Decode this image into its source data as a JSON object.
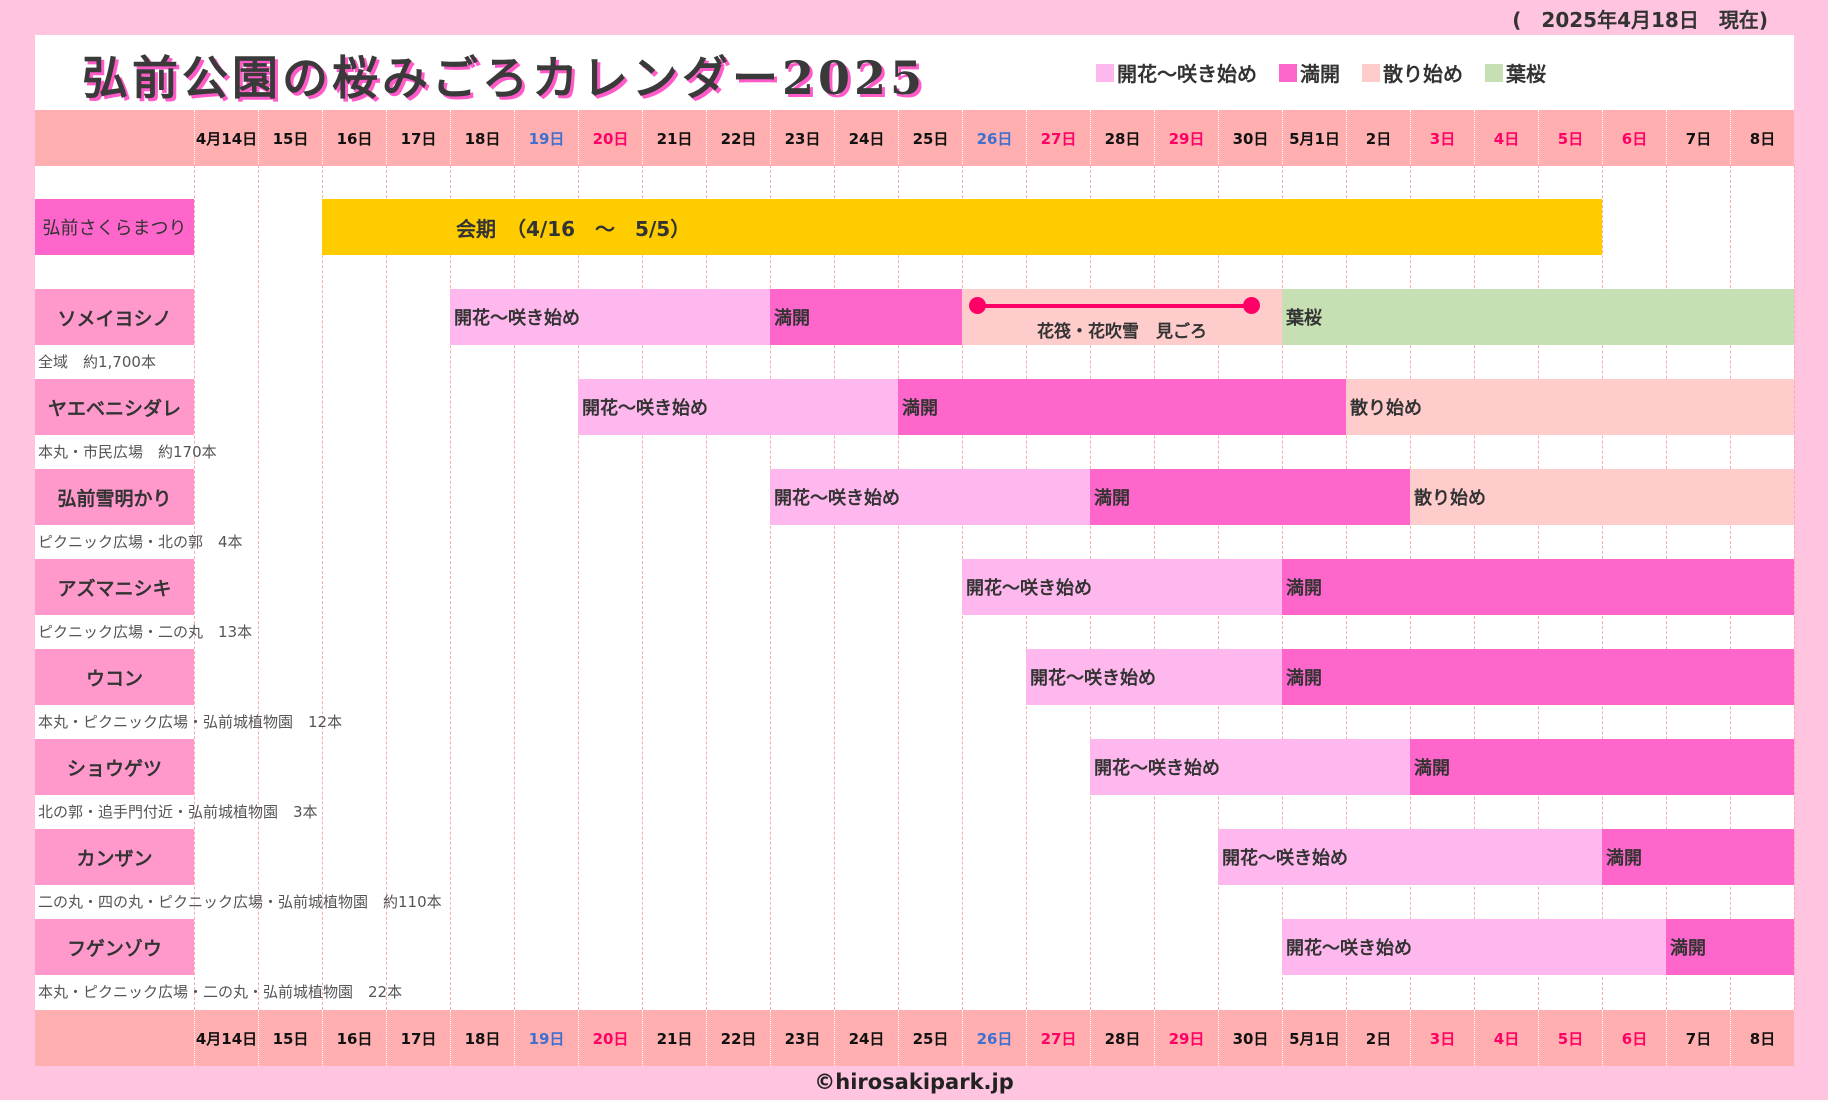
{
  "as_of": "(　2025年4月18日　現在)",
  "title": "弘前公園の桜みごろカレンダー2025",
  "legend": [
    {
      "key": "kaika",
      "label": "開花～咲き始め",
      "color": "#ffb8ee"
    },
    {
      "key": "mankai",
      "label": "満開",
      "color": "#ff66cc"
    },
    {
      "key": "chiri",
      "label": "散り始め",
      "color": "#ffcccc"
    },
    {
      "key": "hazakura",
      "label": "葉桜",
      "color": "#c6e0b4"
    }
  ],
  "stage_labels": {
    "kaika": "開花～咲き始め",
    "mankai": "満開",
    "chiri": "散り始め",
    "hazakura": "葉桜"
  },
  "days": [
    {
      "label": "4月14日",
      "color": "#111"
    },
    {
      "label": "15日",
      "color": "#111"
    },
    {
      "label": "16日",
      "color": "#111"
    },
    {
      "label": "17日",
      "color": "#111"
    },
    {
      "label": "18日",
      "color": "#111"
    },
    {
      "label": "19日",
      "color": "#3f6fcf"
    },
    {
      "label": "20日",
      "color": "#ff0066"
    },
    {
      "label": "21日",
      "color": "#111"
    },
    {
      "label": "22日",
      "color": "#111"
    },
    {
      "label": "23日",
      "color": "#111"
    },
    {
      "label": "24日",
      "color": "#111"
    },
    {
      "label": "25日",
      "color": "#111"
    },
    {
      "label": "26日",
      "color": "#3f6fcf"
    },
    {
      "label": "27日",
      "color": "#ff0066"
    },
    {
      "label": "28日",
      "color": "#111"
    },
    {
      "label": "29日",
      "color": "#ff0066"
    },
    {
      "label": "30日",
      "color": "#111"
    },
    {
      "label": "5月1日",
      "color": "#111"
    },
    {
      "label": "2日",
      "color": "#111"
    },
    {
      "label": "3日",
      "color": "#ff0066"
    },
    {
      "label": "4日",
      "color": "#ff0066"
    },
    {
      "label": "5日",
      "color": "#ff0066"
    },
    {
      "label": "6日",
      "color": "#ff0066"
    },
    {
      "label": "7日",
      "color": "#111"
    },
    {
      "label": "8日",
      "color": "#111"
    }
  ],
  "festival": {
    "name": "弘前さくらまつり",
    "period_text": "会期　（4/16　～　5/5）",
    "start": "16日",
    "end": "5日",
    "color": "#ffcc00",
    "label_color": "#ff66cc"
  },
  "varieties": [
    {
      "name": "ソメイヨシノ",
      "location": "全域　約1,700本",
      "segments": [
        {
          "stage": "kaika",
          "start": "18日",
          "end": "22日"
        },
        {
          "stage": "mankai",
          "start": "23日",
          "end": "25日"
        },
        {
          "stage": "chiri",
          "start": "26日",
          "end": "30日",
          "note": "花筏・花吹雪　見ごろ"
        },
        {
          "stage": "hazakura",
          "start": "5月1日",
          "end": "8日"
        }
      ]
    },
    {
      "name": "ヤエベニシダレ",
      "location": "本丸・市民広場　約170本",
      "segments": [
        {
          "stage": "kaika",
          "start": "20日",
          "end": "24日"
        },
        {
          "stage": "mankai",
          "start": "25日",
          "end": "5月1日"
        },
        {
          "stage": "chiri",
          "start": "2日",
          "end": "8日"
        }
      ]
    },
    {
      "name": "弘前雪明かり",
      "location": "ピクニック広場・北の郭　4本",
      "segments": [
        {
          "stage": "kaika",
          "start": "23日",
          "end": "27日"
        },
        {
          "stage": "mankai",
          "start": "28日",
          "end": "2日"
        },
        {
          "stage": "chiri",
          "start": "3日",
          "end": "8日"
        }
      ]
    },
    {
      "name": "アズマニシキ",
      "location": "ピクニック広場・二の丸　13本",
      "segments": [
        {
          "stage": "kaika",
          "start": "26日",
          "end": "30日"
        },
        {
          "stage": "mankai",
          "start": "5月1日",
          "end": "8日"
        }
      ]
    },
    {
      "name": "ウコン",
      "location": "本丸・ピクニック広場・弘前城植物園　12本",
      "segments": [
        {
          "stage": "kaika",
          "start": "27日",
          "end": "30日"
        },
        {
          "stage": "mankai",
          "start": "5月1日",
          "end": "8日"
        }
      ]
    },
    {
      "name": "ショウゲツ",
      "location": "北の郭・追手門付近・弘前城植物園　3本",
      "segments": [
        {
          "stage": "kaika",
          "start": "28日",
          "end": "2日"
        },
        {
          "stage": "mankai",
          "start": "3日",
          "end": "8日"
        }
      ]
    },
    {
      "name": "カンザン",
      "location": "二の丸・四の丸・ピクニック広場・弘前城植物園　約110本",
      "segments": [
        {
          "stage": "kaika",
          "start": "30日",
          "end": "5日"
        },
        {
          "stage": "mankai",
          "start": "6日",
          "end": "8日"
        }
      ]
    },
    {
      "name": "フゲンゾウ",
      "location": "本丸・ピクニック広場・二の丸・弘前城植物園　22本",
      "segments": [
        {
          "stage": "kaika",
          "start": "5月1日",
          "end": "6日"
        },
        {
          "stage": "mankai",
          "start": "7日",
          "end": "8日"
        }
      ]
    }
  ],
  "variety_label_color": "#ff99cc",
  "bloom_line_color": "#ff0066",
  "footer": "©hirosakipark.jp"
}
